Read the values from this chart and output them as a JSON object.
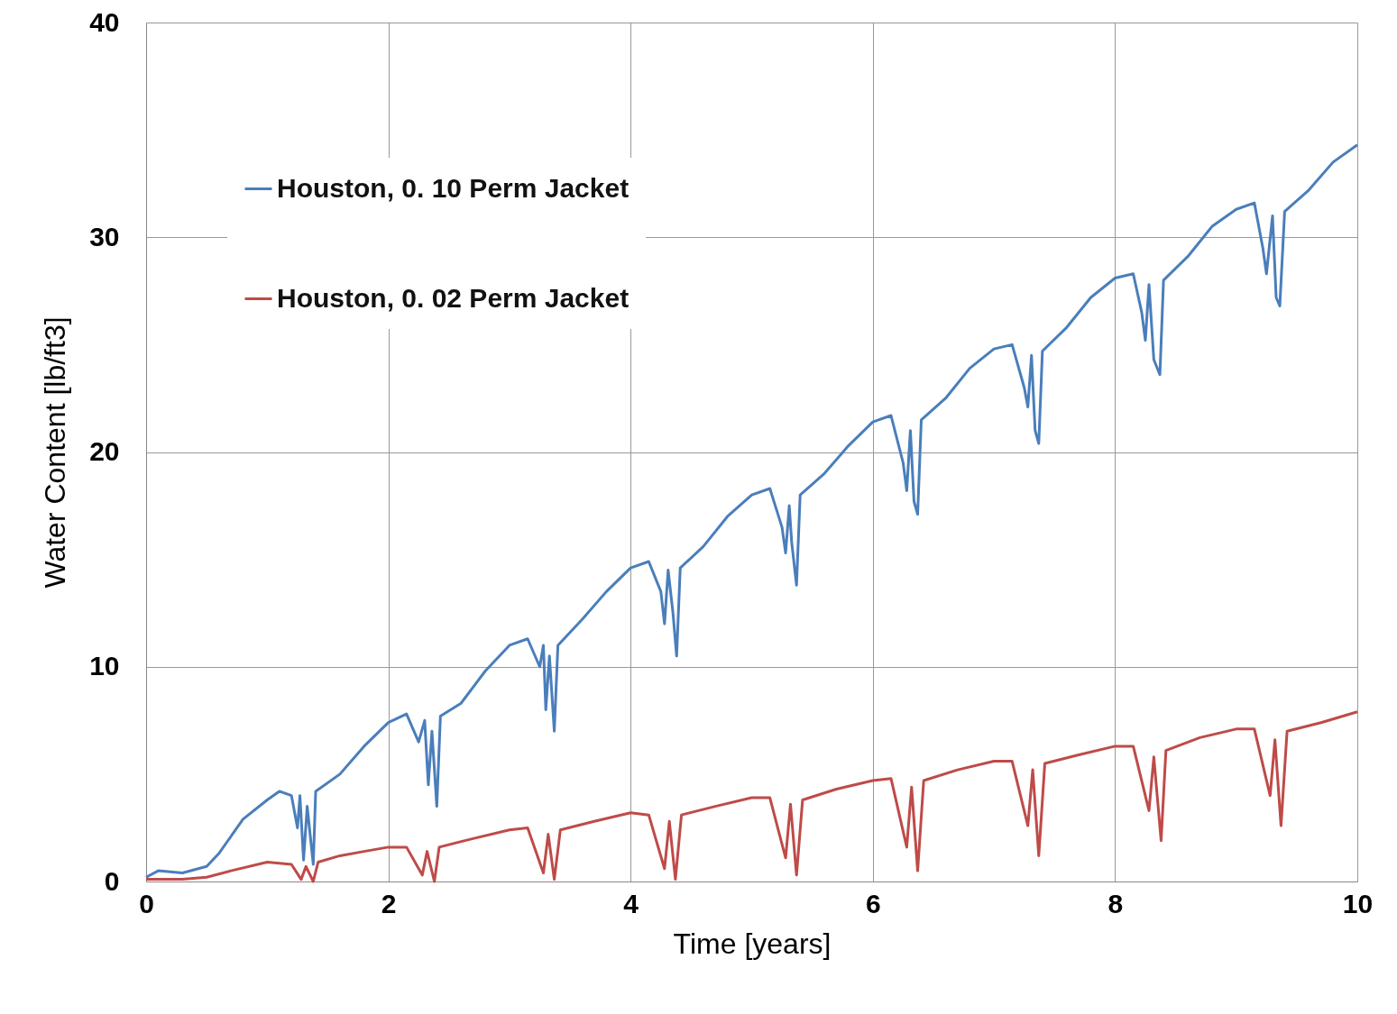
{
  "chart_data": {
    "type": "line",
    "xlabel": "Time [years]",
    "ylabel": "Water Content [lb/ft3]",
    "xlim": [
      0,
      10
    ],
    "ylim": [
      0,
      40
    ],
    "xticks": [
      0,
      2,
      4,
      6,
      8,
      10
    ],
    "yticks": [
      0,
      10,
      20,
      30,
      40
    ],
    "grid": true,
    "legend": "top left",
    "line_style": "solid",
    "marker": "none",
    "series": [
      {
        "name": "Houston, 0. 10 Perm Jacket",
        "color": "#4a7ebb",
        "x": [
          0,
          0.1,
          0.3,
          0.5,
          0.6,
          0.8,
          1.0,
          1.1,
          1.2,
          1.25,
          1.27,
          1.3,
          1.33,
          1.38,
          1.4,
          1.6,
          1.8,
          2.0,
          2.15,
          2.25,
          2.3,
          2.33,
          2.36,
          2.4,
          2.43,
          2.6,
          2.8,
          3.0,
          3.15,
          3.25,
          3.28,
          3.3,
          3.33,
          3.37,
          3.4,
          3.6,
          3.8,
          4.0,
          4.15,
          4.25,
          4.28,
          4.31,
          4.35,
          4.38,
          4.41,
          4.6,
          4.8,
          5.0,
          5.15,
          5.25,
          5.28,
          5.31,
          5.33,
          5.37,
          5.4,
          5.6,
          5.8,
          6.0,
          6.15,
          6.25,
          6.28,
          6.31,
          6.34,
          6.37,
          6.4,
          6.6,
          6.8,
          7.0,
          7.15,
          7.25,
          7.28,
          7.31,
          7.34,
          7.37,
          7.4,
          7.6,
          7.8,
          8.0,
          8.15,
          8.22,
          8.25,
          8.28,
          8.32,
          8.37,
          8.4,
          8.6,
          8.8,
          9.0,
          9.15,
          9.22,
          9.25,
          9.3,
          9.33,
          9.36,
          9.4,
          9.6,
          9.8,
          10.0
        ],
        "values": [
          0.2,
          0.5,
          0.4,
          0.7,
          1.3,
          2.9,
          3.8,
          4.2,
          4.0,
          2.5,
          4.0,
          1.0,
          3.5,
          0.8,
          4.2,
          5.0,
          6.3,
          7.4,
          7.8,
          6.5,
          7.5,
          4.5,
          7.0,
          3.5,
          7.7,
          8.3,
          9.8,
          11.0,
          11.3,
          10.0,
          11.0,
          8.0,
          10.5,
          7.0,
          11.0,
          12.2,
          13.5,
          14.6,
          14.9,
          13.5,
          12.0,
          14.5,
          12.5,
          10.5,
          14.6,
          15.6,
          17.0,
          18.0,
          18.3,
          16.5,
          15.3,
          17.5,
          15.8,
          13.8,
          18.0,
          19.0,
          20.3,
          21.4,
          21.7,
          19.5,
          18.2,
          21.0,
          17.7,
          17.1,
          21.5,
          22.5,
          23.9,
          24.8,
          25.0,
          23.0,
          22.1,
          24.5,
          21.0,
          20.4,
          24.7,
          25.8,
          27.2,
          28.1,
          28.3,
          26.5,
          25.2,
          27.8,
          24.3,
          23.6,
          28.0,
          29.1,
          30.5,
          31.3,
          31.6,
          29.5,
          28.3,
          31.0,
          27.2,
          26.8,
          31.2,
          32.2,
          33.5,
          34.3
        ]
      },
      {
        "name": "Houston, 0. 02 Perm Jacket",
        "color": "#be4b48",
        "x": [
          0,
          0.3,
          0.5,
          0.7,
          1.0,
          1.2,
          1.28,
          1.32,
          1.38,
          1.42,
          1.6,
          1.8,
          2.0,
          2.15,
          2.28,
          2.32,
          2.38,
          2.42,
          2.7,
          3.0,
          3.15,
          3.28,
          3.32,
          3.37,
          3.42,
          3.7,
          4.0,
          4.15,
          4.28,
          4.32,
          4.37,
          4.42,
          4.7,
          5.0,
          5.15,
          5.28,
          5.32,
          5.37,
          5.42,
          5.7,
          6.0,
          6.15,
          6.28,
          6.32,
          6.37,
          6.42,
          6.7,
          7.0,
          7.15,
          7.28,
          7.32,
          7.37,
          7.42,
          7.7,
          8.0,
          8.15,
          8.28,
          8.32,
          8.38,
          8.42,
          8.7,
          9.0,
          9.15,
          9.28,
          9.32,
          9.37,
          9.42,
          9.7,
          10.0
        ],
        "values": [
          0.1,
          0.1,
          0.2,
          0.5,
          0.9,
          0.8,
          0.1,
          0.7,
          0.0,
          0.9,
          1.2,
          1.4,
          1.6,
          1.6,
          0.3,
          1.4,
          0.0,
          1.6,
          2.0,
          2.4,
          2.5,
          0.4,
          2.2,
          0.1,
          2.4,
          2.8,
          3.2,
          3.1,
          0.6,
          2.8,
          0.1,
          3.1,
          3.5,
          3.9,
          3.9,
          1.1,
          3.6,
          0.3,
          3.8,
          4.3,
          4.7,
          4.8,
          1.6,
          4.4,
          0.5,
          4.7,
          5.2,
          5.6,
          5.6,
          2.6,
          5.2,
          1.2,
          5.5,
          5.9,
          6.3,
          6.3,
          3.3,
          5.8,
          1.9,
          6.1,
          6.7,
          7.1,
          7.1,
          4.0,
          6.6,
          2.6,
          7.0,
          7.4,
          7.9
        ]
      }
    ]
  }
}
